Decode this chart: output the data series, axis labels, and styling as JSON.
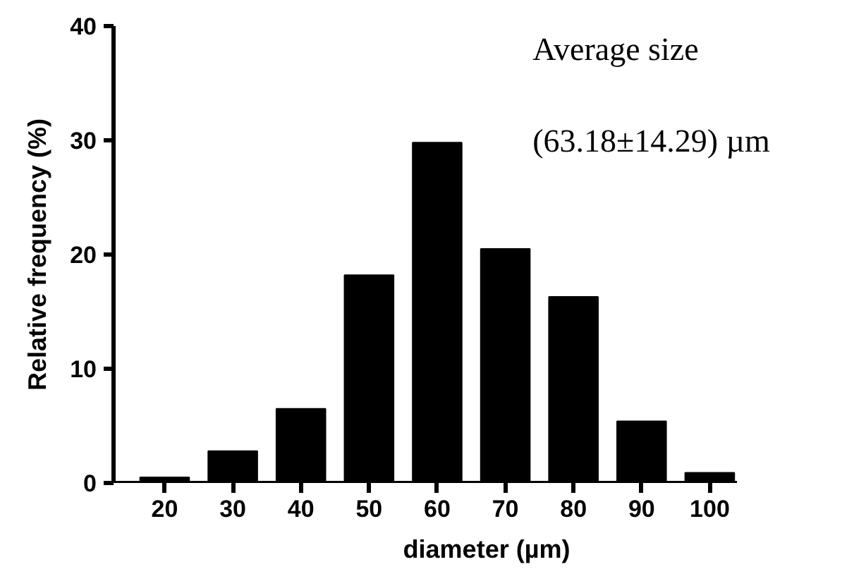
{
  "chart_data": {
    "type": "bar",
    "xlabel": "diameter (µm)",
    "ylabel": "Relative frequency (%)",
    "categories": [
      "20",
      "30",
      "40",
      "50",
      "60",
      "70",
      "80",
      "90",
      "100"
    ],
    "values": [
      0.5,
      2.8,
      6.5,
      18.2,
      29.8,
      20.5,
      16.3,
      5.4,
      0.9
    ],
    "color": "#000000",
    "ylim": [
      0,
      40
    ],
    "yticks": [
      0,
      10,
      20,
      30,
      40
    ],
    "grid": false,
    "annotations": [
      "Average size",
      "(63.18±14.29) µm"
    ]
  }
}
